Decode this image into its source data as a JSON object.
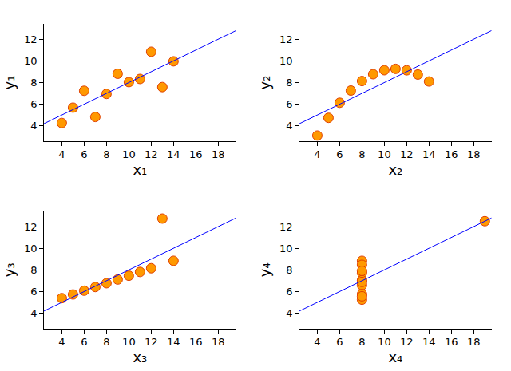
{
  "chart_data": [
    {
      "type": "scatter",
      "x_label": "x₁",
      "y_label": "y₁",
      "xlim": [
        2.4,
        19.6
      ],
      "ylim": [
        2.6,
        13.4
      ],
      "xticks": [
        4,
        6,
        8,
        10,
        12,
        14,
        16,
        18
      ],
      "yticks": [
        4,
        6,
        8,
        10,
        12
      ],
      "grid": false,
      "series": [
        {
          "type": "scatter",
          "marker": "circle",
          "color": "#ff9900",
          "x": [
            10,
            8,
            13,
            9,
            11,
            14,
            6,
            4,
            12,
            7,
            5
          ],
          "values": [
            8.04,
            6.95,
            7.58,
            8.81,
            8.33,
            9.96,
            7.24,
            4.26,
            10.84,
            4.82,
            5.68
          ]
        },
        {
          "type": "line",
          "line_style": "solid",
          "color": "#0000ff",
          "x": [
            2.4,
            19.6
          ],
          "values": [
            4.2,
            12.8
          ]
        }
      ]
    },
    {
      "type": "scatter",
      "x_label": "x₂",
      "y_label": "y₂",
      "xlim": [
        2.4,
        19.6
      ],
      "ylim": [
        2.6,
        13.4
      ],
      "xticks": [
        4,
        6,
        8,
        10,
        12,
        14,
        16,
        18
      ],
      "yticks": [
        4,
        6,
        8,
        10,
        12
      ],
      "grid": false,
      "series": [
        {
          "type": "scatter",
          "marker": "circle",
          "color": "#ff9900",
          "x": [
            10,
            8,
            13,
            9,
            11,
            14,
            6,
            4,
            12,
            7,
            5
          ],
          "values": [
            9.14,
            8.14,
            8.74,
            8.77,
            9.26,
            8.1,
            6.13,
            3.1,
            9.13,
            7.26,
            4.74
          ]
        },
        {
          "type": "line",
          "line_style": "solid",
          "color": "#0000ff",
          "x": [
            2.4,
            19.6
          ],
          "values": [
            4.2,
            12.8
          ]
        }
      ]
    },
    {
      "type": "scatter",
      "x_label": "x₃",
      "y_label": "y₃",
      "xlim": [
        2.4,
        19.6
      ],
      "ylim": [
        2.6,
        13.4
      ],
      "xticks": [
        4,
        6,
        8,
        10,
        12,
        14,
        16,
        18
      ],
      "yticks": [
        4,
        6,
        8,
        10,
        12
      ],
      "grid": false,
      "series": [
        {
          "type": "scatter",
          "marker": "circle",
          "color": "#ff9900",
          "x": [
            10,
            8,
            13,
            9,
            11,
            14,
            6,
            4,
            12,
            7,
            5
          ],
          "values": [
            7.46,
            6.77,
            12.74,
            7.11,
            7.81,
            8.84,
            6.08,
            5.39,
            8.15,
            6.42,
            5.73
          ]
        },
        {
          "type": "line",
          "line_style": "solid",
          "color": "#0000ff",
          "x": [
            2.4,
            19.6
          ],
          "values": [
            4.2,
            12.8
          ]
        }
      ]
    },
    {
      "type": "scatter",
      "x_label": "x₄",
      "y_label": "y₄",
      "xlim": [
        2.4,
        19.6
      ],
      "ylim": [
        2.6,
        13.4
      ],
      "xticks": [
        4,
        6,
        8,
        10,
        12,
        14,
        16,
        18
      ],
      "yticks": [
        4,
        6,
        8,
        10,
        12
      ],
      "grid": false,
      "series": [
        {
          "type": "scatter",
          "marker": "circle",
          "color": "#ff9900",
          "x": [
            8,
            8,
            8,
            8,
            8,
            8,
            8,
            19,
            8,
            8,
            8
          ],
          "values": [
            6.58,
            5.76,
            7.71,
            8.84,
            8.47,
            7.04,
            5.25,
            12.5,
            5.56,
            7.91,
            6.89
          ]
        },
        {
          "type": "line",
          "line_style": "solid",
          "color": "#0000ff",
          "x": [
            2.4,
            19.6
          ],
          "values": [
            4.2,
            12.8
          ]
        }
      ]
    }
  ]
}
